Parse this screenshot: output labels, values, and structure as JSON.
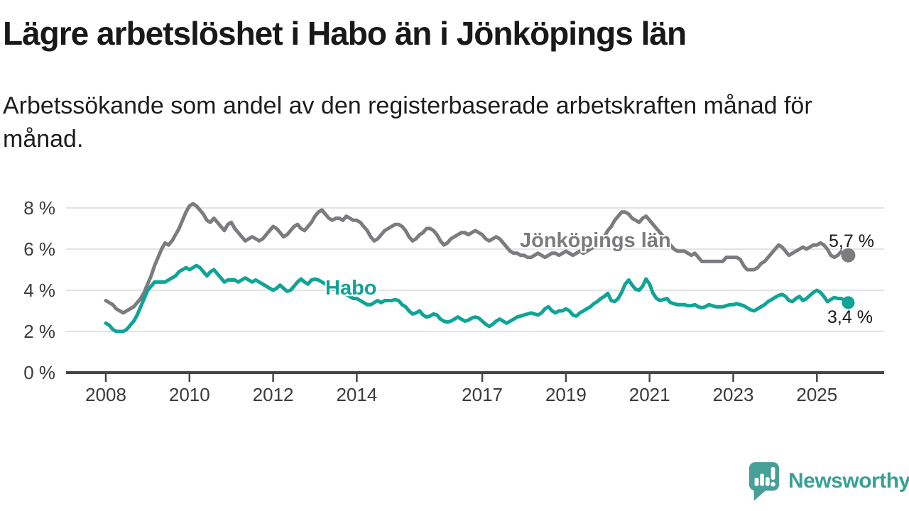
{
  "header": {
    "title": "Lägre arbetslöshet i Habo än i Jönköpings län",
    "subtitle": "Arbetssökande som andel av den registerbaserade arbetskraften månad för månad."
  },
  "footer": {
    "brand": "Newsworthy",
    "brand_color": "#38a094"
  },
  "chart_data": {
    "type": "line",
    "title": "Lägre arbetslöshet i Habo än i Jönköpings län",
    "xlabel": "",
    "ylabel": "",
    "unit": "%",
    "grid": true,
    "grid_color": "#dadada",
    "axis_color": "#454545",
    "ylim": [
      0,
      8.6
    ],
    "yticks": [
      0,
      2,
      4,
      6,
      8
    ],
    "y_tick_labels": [
      "0 %",
      "2 %",
      "4 %",
      "6 %",
      "8 %"
    ],
    "xticks": [
      2008,
      2010,
      2012,
      2014,
      2017,
      2019,
      2021,
      2023,
      2025
    ],
    "x_tick_labels": [
      "2008",
      "2010",
      "2012",
      "2014",
      "2017",
      "2019",
      "2021",
      "2023",
      "2025"
    ],
    "x_start": 2008.0,
    "points_per_year": 12,
    "x_end": 2025.75,
    "series": [
      {
        "id": "jonkopings-lan",
        "name": "Jönköpings län",
        "color": "#7b7b80",
        "end_label": "5,7 %",
        "end_value": 5.7,
        "values": [
          3.5,
          3.4,
          3.3,
          3.1,
          3.0,
          2.9,
          3.0,
          3.1,
          3.2,
          3.4,
          3.6,
          3.9,
          4.3,
          4.7,
          5.2,
          5.6,
          6.0,
          6.3,
          6.2,
          6.4,
          6.7,
          7.0,
          7.4,
          7.8,
          8.1,
          8.2,
          8.1,
          7.9,
          7.7,
          7.4,
          7.3,
          7.5,
          7.3,
          7.1,
          6.9,
          7.2,
          7.3,
          7.0,
          6.8,
          6.6,
          6.4,
          6.5,
          6.6,
          6.5,
          6.4,
          6.5,
          6.7,
          6.9,
          7.1,
          7.0,
          6.8,
          6.6,
          6.7,
          6.9,
          7.1,
          7.2,
          7.0,
          6.9,
          7.1,
          7.3,
          7.6,
          7.8,
          7.9,
          7.7,
          7.5,
          7.4,
          7.5,
          7.5,
          7.4,
          7.6,
          7.5,
          7.4,
          7.4,
          7.3,
          7.1,
          6.9,
          6.6,
          6.4,
          6.5,
          6.7,
          6.9,
          7.0,
          7.1,
          7.2,
          7.2,
          7.1,
          6.9,
          6.6,
          6.4,
          6.5,
          6.7,
          6.8,
          7.0,
          7.0,
          6.9,
          6.7,
          6.4,
          6.2,
          6.3,
          6.5,
          6.6,
          6.7,
          6.8,
          6.8,
          6.7,
          6.8,
          6.9,
          6.8,
          6.7,
          6.5,
          6.4,
          6.5,
          6.6,
          6.5,
          6.3,
          6.1,
          5.9,
          5.8,
          5.8,
          5.7,
          5.7,
          5.6,
          5.6,
          5.7,
          5.8,
          5.7,
          5.6,
          5.7,
          5.8,
          5.8,
          5.7,
          5.8,
          5.9,
          5.8,
          5.7,
          5.8,
          5.9,
          5.8,
          5.9,
          6.0,
          6.1,
          6.2,
          6.4,
          6.6,
          6.9,
          7.1,
          7.4,
          7.6,
          7.8,
          7.8,
          7.7,
          7.5,
          7.4,
          7.3,
          7.5,
          7.6,
          7.4,
          7.2,
          7.0,
          6.8,
          6.6,
          6.4,
          6.2,
          6.0,
          5.9,
          5.9,
          5.9,
          5.8,
          5.7,
          5.8,
          5.6,
          5.4,
          5.4,
          5.4,
          5.4,
          5.4,
          5.4,
          5.4,
          5.6,
          5.6,
          5.6,
          5.6,
          5.5,
          5.2,
          5.0,
          5.0,
          5.0,
          5.1,
          5.3,
          5.4,
          5.6,
          5.8,
          6.0,
          6.2,
          6.1,
          5.9,
          5.7,
          5.8,
          5.9,
          6.0,
          6.1,
          6.0,
          6.1,
          6.2,
          6.2,
          6.3,
          6.2,
          6.0,
          5.7,
          5.6,
          5.7,
          5.9,
          5.8,
          5.7
        ]
      },
      {
        "id": "habo",
        "name": "Habo",
        "color": "#0fa496",
        "end_label": "3,4 %",
        "end_value": 3.4,
        "values": [
          2.4,
          2.3,
          2.1,
          2.0,
          2.0,
          2.0,
          2.1,
          2.3,
          2.5,
          2.8,
          3.2,
          3.6,
          4.0,
          4.2,
          4.4,
          4.4,
          4.4,
          4.4,
          4.5,
          4.6,
          4.7,
          4.9,
          5.0,
          5.1,
          5.0,
          5.1,
          5.2,
          5.1,
          4.9,
          4.7,
          4.9,
          5.0,
          4.8,
          4.6,
          4.4,
          4.5,
          4.5,
          4.5,
          4.4,
          4.5,
          4.6,
          4.5,
          4.4,
          4.5,
          4.4,
          4.3,
          4.2,
          4.1,
          4.0,
          4.1,
          4.25,
          4.1,
          3.95,
          4.0,
          4.2,
          4.4,
          4.55,
          4.4,
          4.3,
          4.5,
          4.55,
          4.5,
          4.4,
          4.3,
          4.2,
          4.1,
          4.0,
          3.9,
          3.85,
          3.8,
          3.7,
          3.6,
          3.6,
          3.5,
          3.4,
          3.3,
          3.3,
          3.4,
          3.5,
          3.4,
          3.5,
          3.5,
          3.5,
          3.55,
          3.5,
          3.3,
          3.2,
          3.0,
          2.85,
          2.9,
          3.0,
          2.8,
          2.7,
          2.75,
          2.85,
          2.8,
          2.6,
          2.5,
          2.45,
          2.5,
          2.6,
          2.7,
          2.6,
          2.5,
          2.55,
          2.65,
          2.7,
          2.65,
          2.5,
          2.35,
          2.25,
          2.35,
          2.5,
          2.6,
          2.5,
          2.4,
          2.5,
          2.6,
          2.7,
          2.75,
          2.8,
          2.85,
          2.9,
          2.85,
          2.8,
          2.9,
          3.1,
          3.2,
          3.0,
          2.9,
          3.0,
          3.0,
          3.1,
          3.0,
          2.8,
          2.75,
          2.9,
          3.0,
          3.1,
          3.2,
          3.35,
          3.45,
          3.6,
          3.7,
          3.85,
          3.5,
          3.45,
          3.6,
          3.9,
          4.3,
          4.5,
          4.25,
          4.05,
          4.0,
          4.2,
          4.55,
          4.3,
          3.85,
          3.6,
          3.5,
          3.55,
          3.6,
          3.4,
          3.35,
          3.3,
          3.3,
          3.3,
          3.25,
          3.25,
          3.3,
          3.2,
          3.15,
          3.2,
          3.3,
          3.25,
          3.2,
          3.2,
          3.2,
          3.25,
          3.3,
          3.3,
          3.35,
          3.3,
          3.25,
          3.15,
          3.05,
          3.0,
          3.1,
          3.2,
          3.3,
          3.45,
          3.55,
          3.65,
          3.75,
          3.8,
          3.7,
          3.5,
          3.45,
          3.6,
          3.7,
          3.5,
          3.6,
          3.75,
          3.9,
          4.0,
          3.9,
          3.7,
          3.45,
          3.55,
          3.65,
          3.6,
          3.6,
          3.5,
          3.4
        ]
      }
    ],
    "legend_position": "inline-labels"
  }
}
